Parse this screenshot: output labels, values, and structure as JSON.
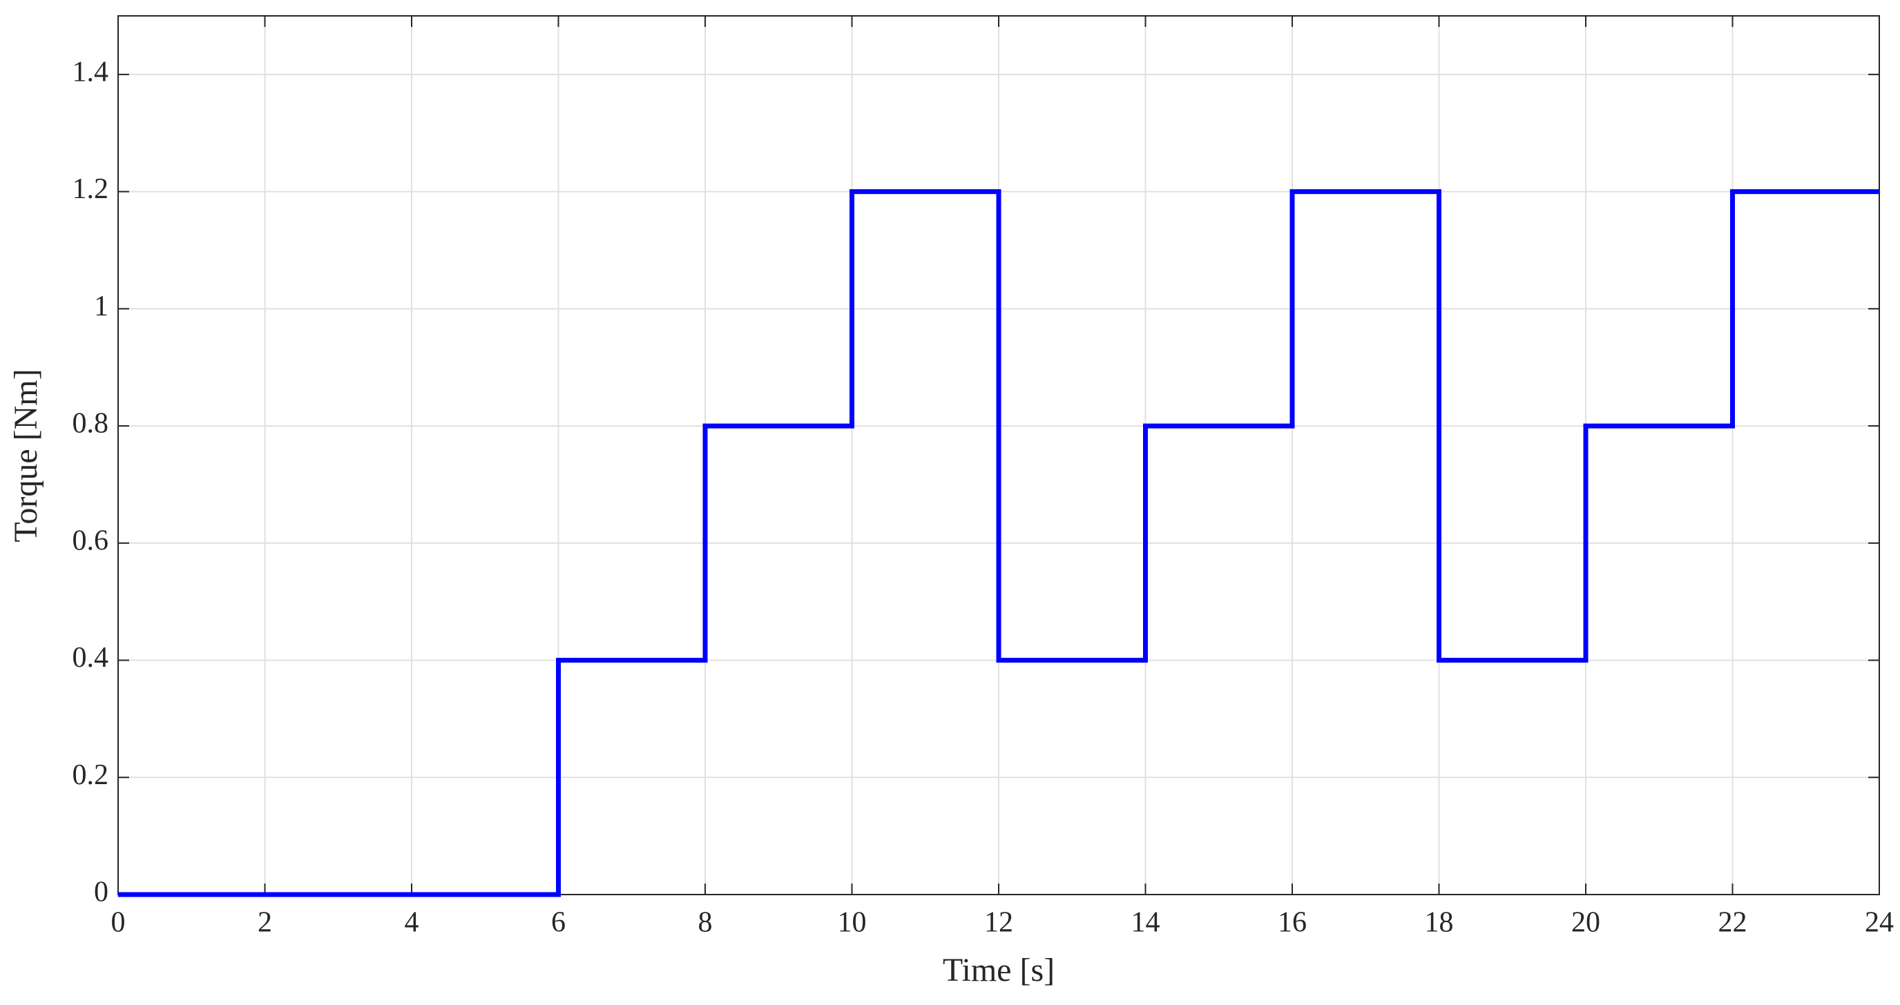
{
  "chart_data": {
    "type": "line",
    "x_label": "Time [s]",
    "y_label": "Torque [Nm]",
    "series": [
      {
        "name": "Torque",
        "color": "#0000ff",
        "x": [
          0,
          6,
          6,
          8,
          8,
          10,
          10,
          12,
          12,
          14,
          14,
          16,
          16,
          18,
          18,
          20,
          20,
          22,
          22,
          24
        ],
        "values": [
          0,
          0,
          0.4,
          0.4,
          0.8,
          0.8,
          1.2,
          1.2,
          0.4,
          0.4,
          0.8,
          0.8,
          1.2,
          1.2,
          0.4,
          0.4,
          0.8,
          0.8,
          1.2,
          1.2
        ]
      }
    ],
    "xlim": [
      0,
      24
    ],
    "xticks": [
      0,
      2,
      4,
      6,
      8,
      10,
      12,
      14,
      16,
      18,
      20,
      22,
      24
    ],
    "ylim": [
      0,
      1.5
    ],
    "yticks": [
      0,
      0.2,
      0.4,
      0.6,
      0.8,
      1,
      1.2,
      1.4
    ],
    "grid": true
  }
}
